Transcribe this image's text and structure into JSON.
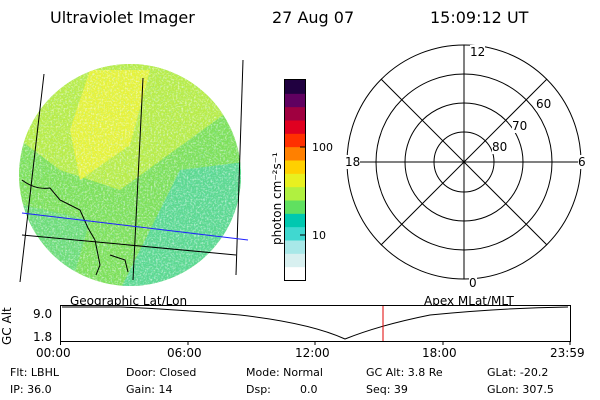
{
  "header": {
    "instrument": "Ultraviolet Imager",
    "date": "27 Aug 07",
    "time": "15:09:12 UT"
  },
  "colorbar": {
    "unit_label": "photon cm⁻²s⁻¹",
    "ticks": [
      "100",
      "10"
    ],
    "colors": [
      "#ffffff",
      "#d8f0f0",
      "#a8e8e8",
      "#40d8d0",
      "#00c8b0",
      "#60e060",
      "#b0f040",
      "#e8f020",
      "#ffd000",
      "#ff8000",
      "#ff3000",
      "#e00020",
      "#a00040",
      "#600060",
      "#200040"
    ]
  },
  "polar_plot": {
    "lat_labels": [
      "60",
      "70",
      "80"
    ],
    "mlt_labels": {
      "top": "12",
      "bottom": "0",
      "left": "18",
      "right": "6"
    }
  },
  "strip": {
    "left_title": "Geographic Lat/Lon",
    "right_title": "Apex MLat/MLT",
    "y_axis_label": "GC Alt",
    "y_ticks": [
      "9.0",
      "1.8"
    ],
    "x_ticks": [
      "00:00",
      "06:00",
      "12:00",
      "18:00",
      "23:59"
    ],
    "marker_color": "#e00000"
  },
  "info": {
    "filter": "Flt: LBHL",
    "ip": "IP: 36.0",
    "door": "Door: Closed",
    "gain": "Gain: 14",
    "mode": "Mode: Normal",
    "dsp_label": "Dsp:",
    "dsp_value": "0.0",
    "gc_alt": "GC Alt: 3.8 Re",
    "seq": "Seq: 39",
    "glat": "GLat: -20.2",
    "glon": "GLon: 307.5"
  }
}
